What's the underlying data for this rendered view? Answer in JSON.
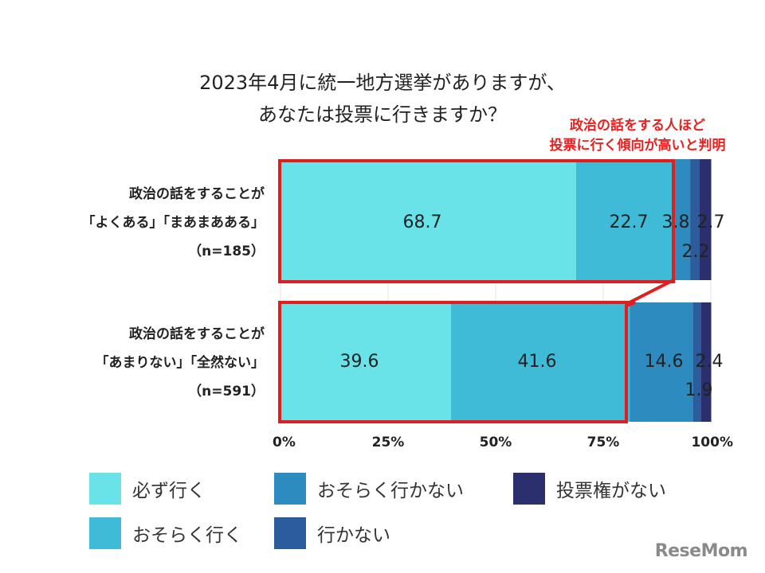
{
  "title": {
    "line1": "2023年4月に統一地方選挙がありますが、",
    "line2": "あなたは投票に行きますか？"
  },
  "annotation": {
    "line1": "政治の話をする人ほど",
    "line2": "投票に行く傾向が高いと判明"
  },
  "colors": {
    "必ず行く": "#6ae3e8",
    "おそらく行く": "#3fbbd8",
    "おそらく行かない": "#2d8bbf",
    "行かない": "#2c5c9c",
    "投票権がない": "#2c2f6e",
    "highlight": "#e01e1e"
  },
  "chart_data": {
    "type": "bar",
    "orientation": "horizontal",
    "stacked": true,
    "title": "2023年4月に統一地方選挙がありますが、あなたは投票に行きますか？",
    "categories": [
      {
        "lines": [
          "政治の話をすることが",
          "「よくある」「まあまあある」",
          "（n=185）"
        ]
      },
      {
        "lines": [
          "政治の話をすることが",
          "「あまりない」「全然ない」",
          "（n=591）"
        ]
      }
    ],
    "series": [
      {
        "name": "必ず行く",
        "values": [
          68.7,
          39.6
        ],
        "labels": [
          "68.7",
          "39.6"
        ]
      },
      {
        "name": "おそらく行く",
        "values": [
          22.7,
          41.6
        ],
        "labels": [
          "22.7",
          "41.6"
        ]
      },
      {
        "name": "おそらく行かない",
        "values": [
          3.8,
          14.6
        ],
        "labels": [
          "3.8",
          "14.6"
        ]
      },
      {
        "name": "行かない",
        "values": [
          2.2,
          1.9
        ],
        "labels": [
          "2.2",
          "1.9"
        ]
      },
      {
        "name": "投票権がない",
        "values": [
          2.7,
          2.4
        ],
        "labels": [
          "2.7",
          "2.4"
        ]
      }
    ],
    "xlim": [
      0,
      100
    ],
    "xticks": [
      "0%",
      "25%",
      "50%",
      "75%",
      "100%"
    ],
    "grid": true,
    "legend_position": "bottom"
  },
  "legend": [
    {
      "label": "必ず行く",
      "color": "#6ae3e8"
    },
    {
      "label": "おそらく行かない",
      "color": "#2d8bbf"
    },
    {
      "label": "投票権がない",
      "color": "#2c2f6e"
    },
    {
      "label": "おそらく行く",
      "color": "#3fbbd8"
    },
    {
      "label": "行かない",
      "color": "#2c5c9c"
    }
  ],
  "logo": "ReseMom"
}
